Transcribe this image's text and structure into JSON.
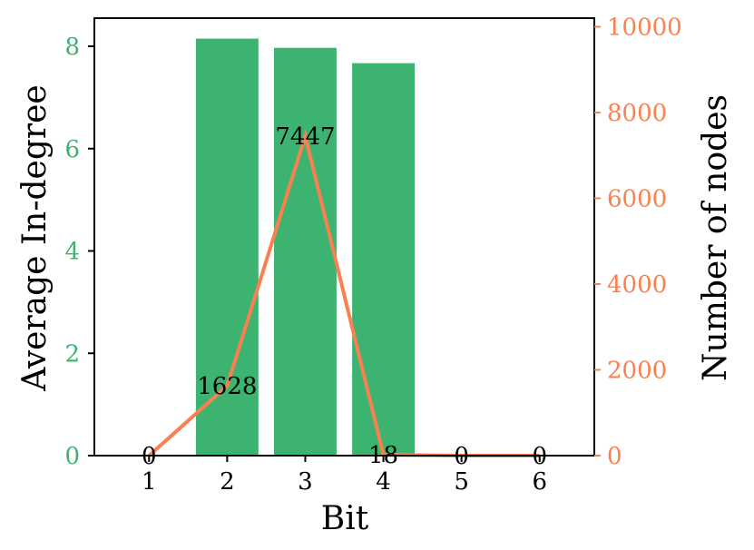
{
  "chart_data": {
    "type": "bar",
    "xlabel": "Bit",
    "ylabel": "Average In-degree",
    "ylabel_right": "Number of nodes",
    "categories": [
      "1",
      "2",
      "3",
      "4",
      "5",
      "6"
    ],
    "x": [
      1,
      2,
      3,
      4,
      5,
      6
    ],
    "series": [
      {
        "type": "bar",
        "axis": "left",
        "values": [
          0,
          8.15,
          7.97,
          7.67,
          0,
          0
        ],
        "color": "#3cb371"
      },
      {
        "type": "line",
        "axis": "right",
        "values": [
          0,
          1628,
          7447,
          18,
          0,
          0
        ],
        "labels": [
          "0",
          "1628",
          "7447",
          "18",
          "0",
          "0"
        ],
        "color": "#fa8050"
      }
    ],
    "ylim": [
      0,
      8.55
    ],
    "yticks": [
      "0",
      "2",
      "4",
      "6",
      "8"
    ],
    "ylim_right": [
      0,
      10200
    ],
    "yticks_right": [
      "0",
      "2000",
      "4000",
      "6000",
      "8000",
      "10000"
    ],
    "xlim": [
      0.3,
      6.7
    ],
    "grid": false,
    "legend": "none"
  }
}
